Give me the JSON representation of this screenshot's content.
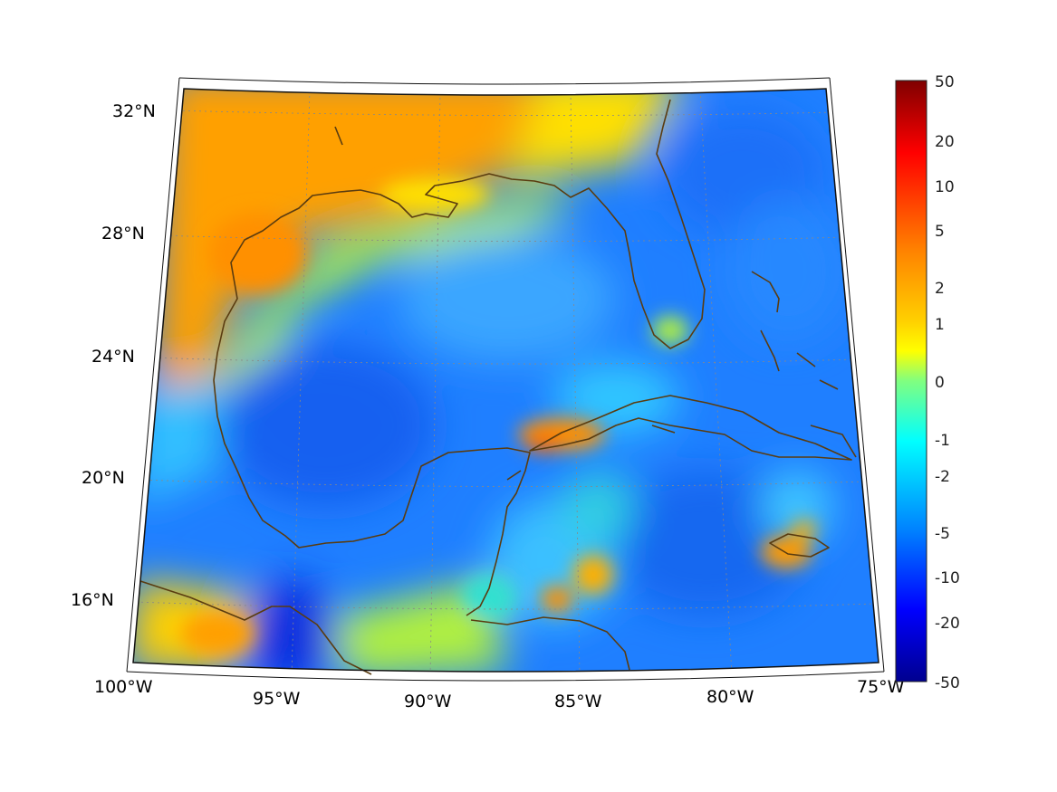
{
  "map": {
    "region": "Gulf of Mexico and Caribbean",
    "projection": "conic",
    "lon_range": [
      -100,
      -75
    ],
    "lat_range": [
      14,
      33
    ],
    "grid_lines": true,
    "coastline_color": "#5a3c10",
    "longitude_labels": [
      "100°W",
      "95°W",
      "90°W",
      "85°W",
      "80°W",
      "75°W"
    ],
    "latitude_labels": [
      "32°N",
      "28°N",
      "24°N",
      "20°N",
      "16°N"
    ]
  },
  "colorbar": {
    "colormap": "jet",
    "scale": "symmetric log",
    "tick_labels": [
      "50",
      "20",
      "10",
      "5",
      "2",
      "1",
      "0",
      "-1",
      "-2",
      "-5",
      "-10",
      "-20",
      "-50"
    ],
    "colors": [
      "#7f0000",
      "#ff0000",
      "#ff8000",
      "#ffff00",
      "#80ff80",
      "#00ffff",
      "#0080ff",
      "#0000ff",
      "#00008f"
    ]
  }
}
